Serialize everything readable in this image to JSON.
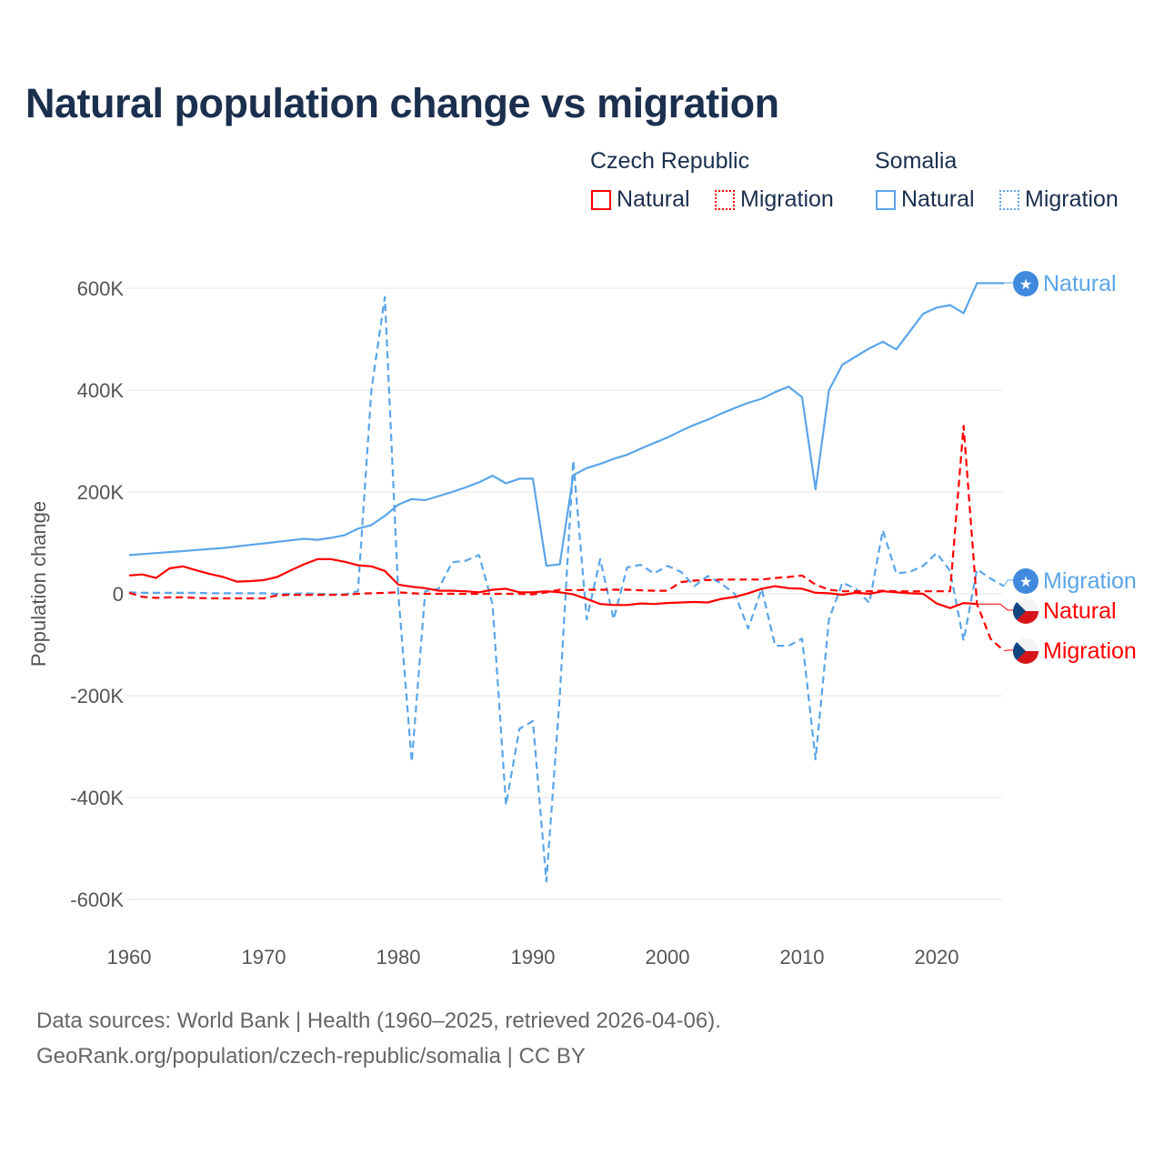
{
  "title": "Natural population change vs migration",
  "legend": {
    "groups": [
      {
        "name": "Czech Republic",
        "color": "#ff0000",
        "items": [
          "Natural",
          "Migration"
        ]
      },
      {
        "name": "Somalia",
        "color": "#5aa5e8",
        "items": [
          "Natural",
          "Migration"
        ]
      }
    ]
  },
  "end_labels": {
    "somalia_natural": "Natural",
    "somalia_migration": "Migration",
    "czech_natural": "Natural",
    "czech_migration": "Migration"
  },
  "footer": {
    "line1": "Data sources: World Bank | Health (1960–2025, retrieved 2026-04-06).",
    "line2": "GeoRank.org/population/czech-republic/somalia | CC BY"
  },
  "chart_data": {
    "type": "line",
    "title": "Natural population change vs migration",
    "xlabel": "",
    "ylabel": "Population change",
    "xlim": [
      1960,
      2025
    ],
    "ylim": [
      -650000,
      650000
    ],
    "x_ticks": [
      1960,
      1970,
      1980,
      1990,
      2000,
      2010,
      2020
    ],
    "x_tick_labels": [
      "1960",
      "1970",
      "1980",
      "1990",
      "2000",
      "2010",
      "2020"
    ],
    "y_ticks": [
      600000,
      400000,
      200000,
      0,
      -200000,
      -400000,
      -600000
    ],
    "y_tick_labels": [
      "600K",
      "400K",
      "200K",
      "0",
      "-200K",
      "-400K",
      "-600K"
    ],
    "grid": true,
    "x_start": 1960,
    "series": [
      {
        "name": "Somalia Natural",
        "country": "Somalia",
        "kind": "Natural",
        "color": "#5aa5e8",
        "dash": false,
        "label_key": "somalia_natural",
        "flag": "somalia",
        "values": [
          76,
          78,
          80,
          82,
          84,
          86,
          88,
          90,
          93,
          96,
          99,
          102,
          105,
          108,
          106,
          110,
          115,
          128,
          135,
          153,
          175,
          186,
          184,
          192,
          200,
          209,
          219,
          232,
          217,
          226,
          226,
          55,
          58,
          233,
          247,
          255,
          265,
          273,
          285,
          296,
          307,
          320,
          332,
          342,
          354,
          365,
          375,
          383,
          396,
          407,
          386,
          205,
          400,
          450,
          466,
          482,
          495,
          480,
          515,
          550,
          562,
          567,
          551,
          610,
          610,
          610
        ]
      },
      {
        "name": "Somalia Migration",
        "country": "Somalia",
        "kind": "Migration",
        "color": "#5aa5e8",
        "dash": true,
        "label_key": "somalia_migration",
        "flag": "somalia",
        "values": [
          3,
          2,
          2,
          2,
          2,
          2,
          1,
          1,
          1,
          1,
          1,
          0,
          0,
          1,
          0,
          -1,
          -1,
          5,
          400,
          583,
          0,
          -330,
          5,
          10,
          62,
          65,
          76,
          -20,
          -415,
          -265,
          -250,
          -565,
          -200,
          262,
          -50,
          68,
          -50,
          52,
          57,
          40,
          55,
          43,
          15,
          35,
          20,
          0,
          -68,
          10,
          -102,
          -102,
          -88,
          -325,
          -50,
          22,
          10,
          -18,
          125,
          40,
          43,
          55,
          80,
          45,
          -92,
          48,
          30,
          15
        ]
      },
      {
        "name": "Czech Republic Natural",
        "country": "Czech Republic",
        "kind": "Natural",
        "color": "#ff0000",
        "dash": false,
        "label_key": "czech_natural",
        "flag": "czech",
        "values": [
          36,
          38,
          31,
          50,
          54,
          46,
          39,
          33,
          24,
          25,
          27,
          33,
          46,
          58,
          68,
          68,
          63,
          56,
          54,
          45,
          18,
          14,
          11,
          6,
          6,
          5,
          3,
          8,
          10,
          3,
          3,
          5,
          3,
          -1,
          -10,
          -20,
          -22,
          -22,
          -19,
          -20,
          -18,
          -17,
          -16,
          -17,
          -10,
          -6,
          1,
          10,
          15,
          11,
          10,
          2,
          1,
          -2,
          2,
          0,
          5,
          3,
          1,
          0,
          -19,
          -28,
          -18,
          -20,
          null,
          null
        ]
      },
      {
        "name": "Czech Republic Migration",
        "country": "Czech Republic",
        "kind": "Migration",
        "color": "#ff0000",
        "dash": true,
        "label_key": "czech_migration",
        "flag": "czech",
        "values": [
          2,
          -6,
          -8,
          -7,
          -7,
          -8,
          -9,
          -9,
          -9,
          -9,
          -9,
          -3,
          -2,
          -2,
          -2,
          -2,
          -2,
          0,
          1,
          2,
          3,
          1,
          0,
          0,
          0,
          0,
          0,
          0,
          0,
          0,
          -1,
          3,
          8,
          7,
          8,
          8,
          8,
          8,
          7,
          6,
          6,
          23,
          26,
          27,
          28,
          28,
          28,
          28,
          31,
          33,
          36,
          18,
          8,
          5,
          5,
          5,
          6,
          5,
          5,
          5,
          5,
          5,
          330,
          -20,
          -88,
          -112
        ]
      }
    ],
    "value_unit": "thousands"
  }
}
